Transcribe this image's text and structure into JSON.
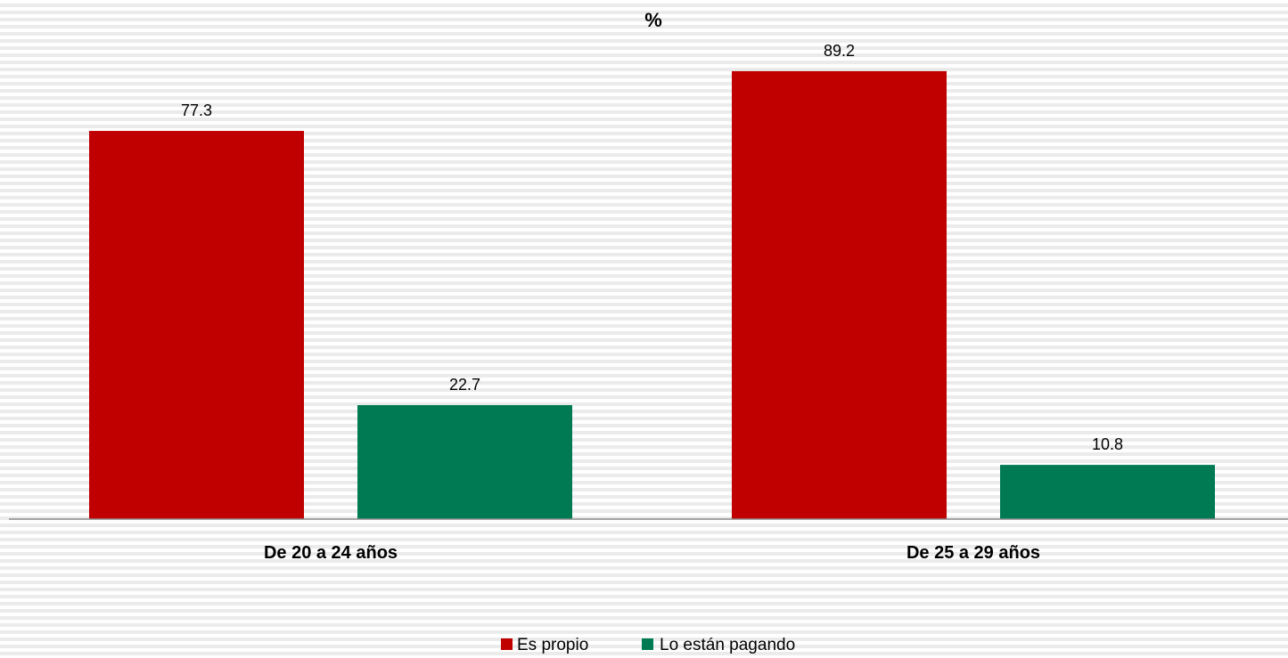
{
  "chart_data": {
    "type": "bar",
    "title": "%",
    "categories": [
      "De 20 a 24 años",
      "De 25 a 29 años"
    ],
    "series": [
      {
        "name": "Es propio",
        "values": [
          77.3,
          89.2
        ],
        "value_labels": [
          "77.3",
          "89.2"
        ],
        "color": "#c00000"
      },
      {
        "name": "Lo están pagando",
        "values": [
          22.7,
          10.8
        ],
        "value_labels": [
          "22.7",
          "10.8"
        ],
        "color": "#007a53"
      }
    ],
    "ylim": [
      0,
      100
    ],
    "grid": false,
    "legend": "bottom-center"
  }
}
